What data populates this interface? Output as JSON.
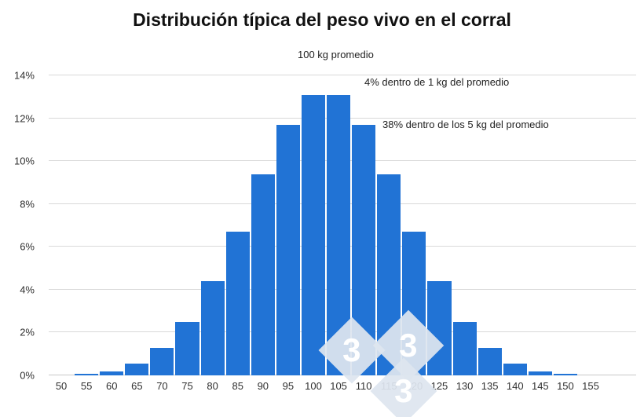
{
  "chart_data": {
    "type": "bar",
    "title": "Distribución típica del peso vivo en el corral",
    "categories": [
      "50",
      "55",
      "60",
      "65",
      "70",
      "75",
      "80",
      "85",
      "90",
      "95",
      "100",
      "105",
      "110",
      "115",
      "120",
      "125",
      "130",
      "135",
      "140",
      "145",
      "150",
      "155"
    ],
    "values": [
      0,
      0.07,
      0.2,
      0.55,
      1.3,
      2.5,
      4.4,
      6.7,
      9.4,
      11.7,
      13.1,
      13.1,
      11.7,
      9.4,
      6.7,
      4.4,
      2.5,
      1.3,
      0.55,
      0.2,
      0.07,
      0
    ],
    "xlabel": "",
    "ylabel": "",
    "ylim": [
      0,
      14
    ],
    "y_ticks": [
      "0%",
      "2%",
      "4%",
      "6%",
      "8%",
      "10%",
      "12%",
      "14%"
    ],
    "grid": true,
    "legend": "none",
    "bar_color": "#2173d5",
    "annotations": [
      {
        "text": "100 kg promedio"
      },
      {
        "text": "4% dentro de 1 kg del promedio"
      },
      {
        "text": "38% dentro de los 5 kg del promedio"
      }
    ],
    "watermark": {
      "text": "3",
      "color": "#dee5ef"
    }
  }
}
